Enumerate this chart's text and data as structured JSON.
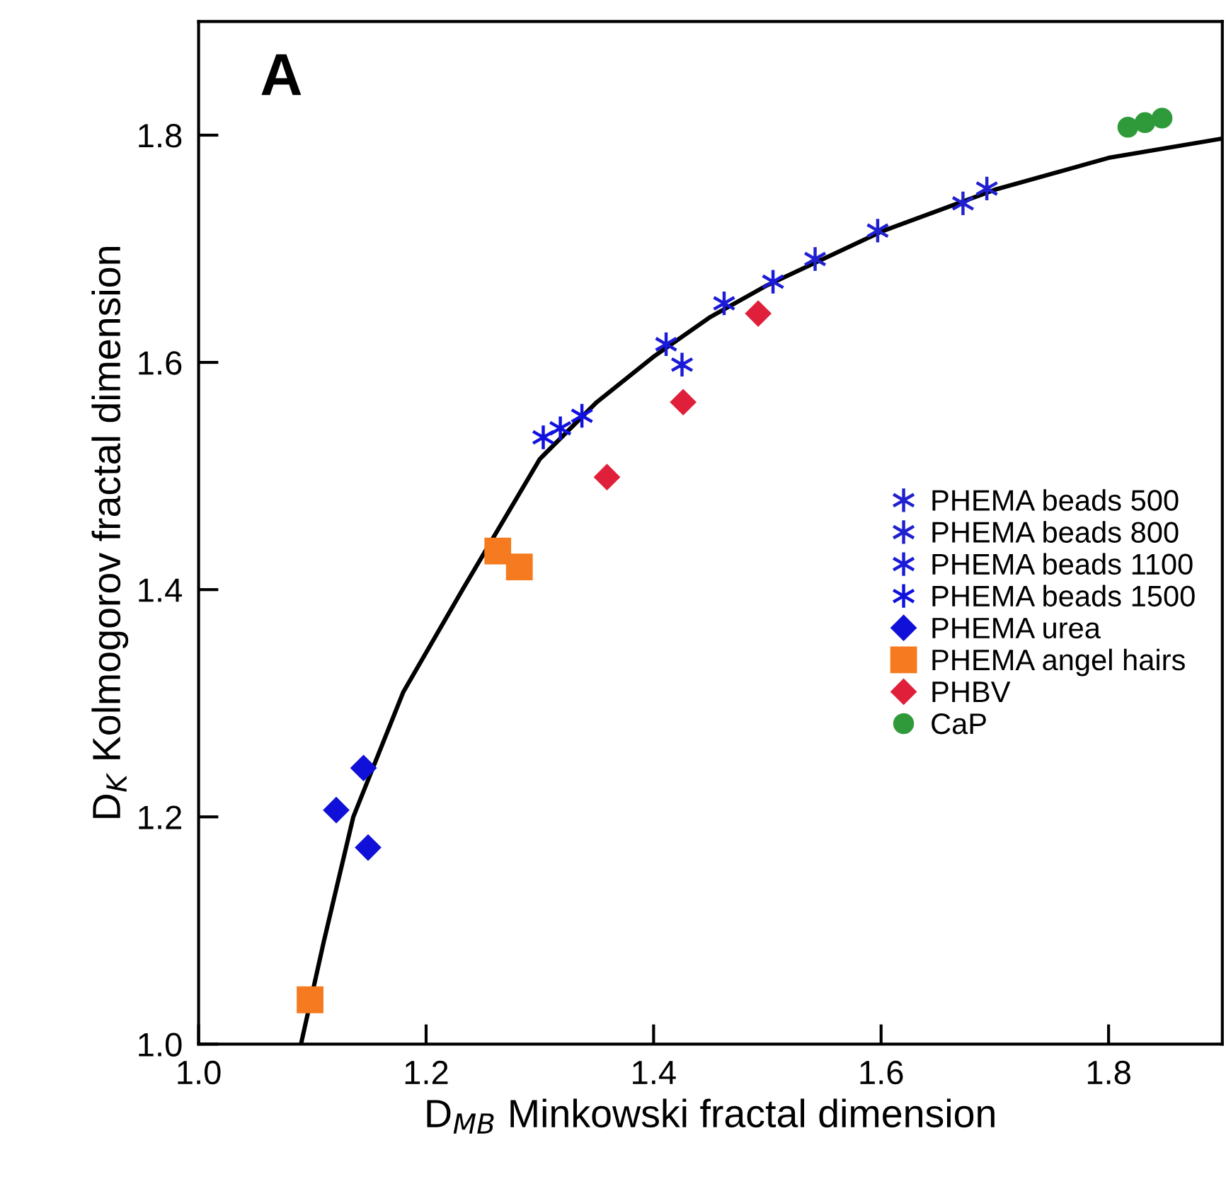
{
  "chart_data": {
    "type": "scatter",
    "title": "A",
    "xlabel": "D$_{MB}$ Minkowski fractal dimension",
    "ylabel": "D$_{K}$ Kolmogorov fractal dimension",
    "xlim": [
      1.0,
      1.9
    ],
    "ylim": [
      1.0,
      1.9
    ],
    "xticks": [
      {
        "value": 1.0,
        "label": "1.0"
      },
      1.2,
      1.4,
      1.6,
      1.8
    ],
    "yticks": [
      {
        "value": 1.0,
        "label": "1.0"
      },
      1.2,
      1.4,
      1.6,
      1.8
    ],
    "grid": false,
    "legend": "center right",
    "series": [
      {
        "type": "line",
        "color": "#000000",
        "marker": "none",
        "line_style": "solid",
        "x": [
          1.09,
          1.11,
          1.136,
          1.18,
          1.232,
          1.3,
          1.35,
          1.4,
          1.45,
          1.5,
          1.6,
          1.7,
          1.8,
          1.9
        ],
        "values": [
          1.0,
          1.09,
          1.2,
          1.31,
          1.4,
          1.515,
          1.565,
          1.605,
          1.64,
          1.668,
          1.715,
          1.752,
          1.78,
          1.797
        ]
      },
      {
        "name": "PHEMA beads 500",
        "color": "#2020d0",
        "marker": "cross",
        "x": [
          1.672,
          1.693
        ],
        "values": [
          1.74,
          1.753
        ]
      },
      {
        "name": "PHEMA beads 800",
        "color": "#2020d0",
        "marker": "cross",
        "x": [
          1.597,
          1.542
        ],
        "values": [
          1.716,
          1.691
        ]
      },
      {
        "name": "PHEMA beads 1100",
        "color": "#1a1ad8",
        "marker": "cross",
        "x": [
          1.505,
          1.462,
          1.425,
          1.411
        ],
        "values": [
          1.671,
          1.652,
          1.598,
          1.616
        ]
      },
      {
        "name": "PHEMA beads 1500",
        "color": "#1010e0",
        "marker": "cross",
        "x": [
          1.303,
          1.318,
          1.337
        ],
        "values": [
          1.534,
          1.542,
          1.553
        ]
      },
      {
        "name": "PHEMA urea",
        "color": "#1010d8",
        "marker": "diamond",
        "x": [
          1.145,
          1.121,
          1.149
        ],
        "values": [
          1.243,
          1.206,
          1.173
        ]
      },
      {
        "name": "PHEMA angel hairs",
        "color": "#f57a20",
        "marker": "square",
        "x": [
          1.098,
          1.263,
          1.282
        ],
        "values": [
          1.039,
          1.434,
          1.42
        ]
      },
      {
        "name": "PHBV",
        "color": "#e0203a",
        "marker": "diamond",
        "x": [
          1.359,
          1.426,
          1.492
        ],
        "values": [
          1.499,
          1.565,
          1.643
        ]
      },
      {
        "name": "CaP",
        "color": "#2e9a3a",
        "marker": "circle",
        "x": [
          1.817,
          1.832,
          1.847
        ],
        "values": [
          1.807,
          1.811,
          1.815
        ]
      }
    ]
  }
}
